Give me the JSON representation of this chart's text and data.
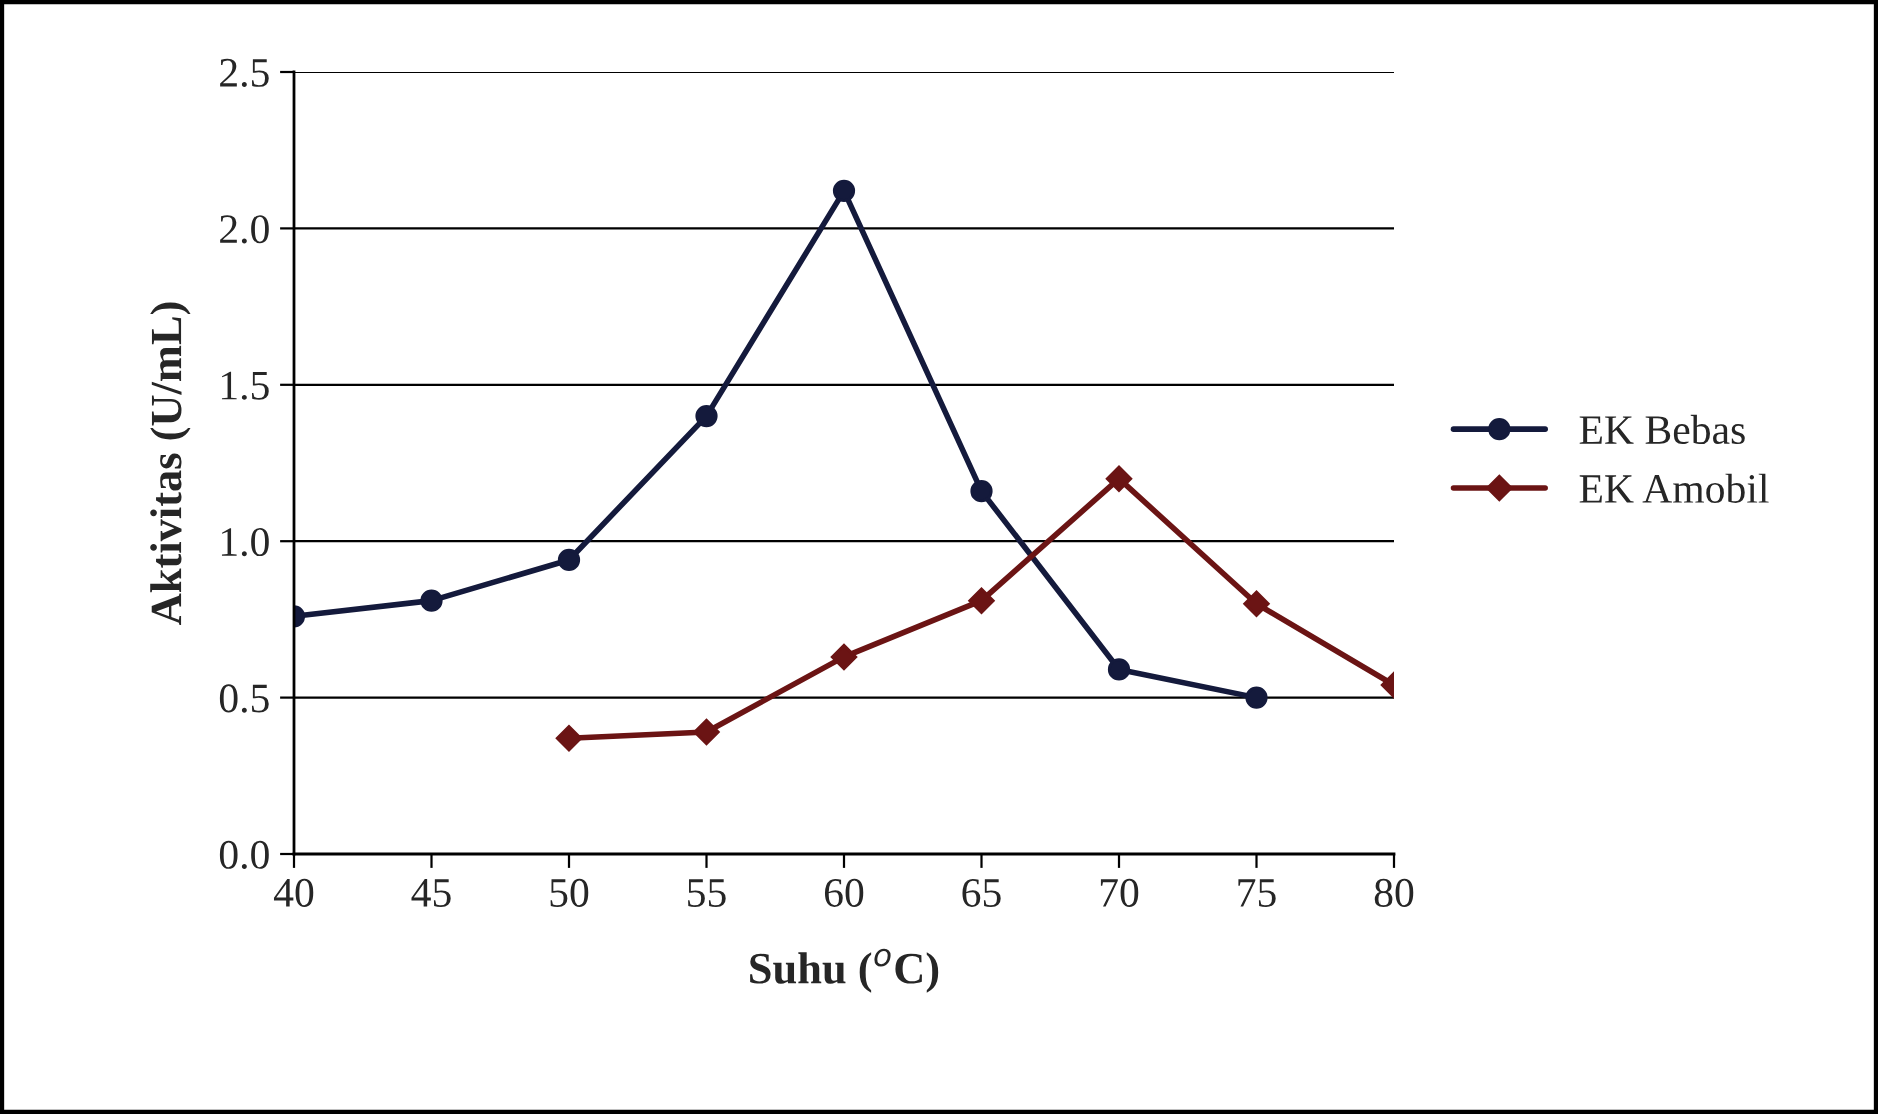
{
  "chart_data": {
    "type": "line",
    "xlabel": "Suhu ($^{o}$C)",
    "ylabel": "Aktivitas (U/mL)",
    "xlim": [
      40,
      80
    ],
    "xticks": [
      40,
      45,
      50,
      55,
      60,
      65,
      70,
      75,
      80
    ],
    "ylim": [
      0,
      2.5
    ],
    "yticks": [
      {
        "value": 0,
        "label": "0.0"
      },
      {
        "value": 0.5,
        "label": "0.5"
      },
      {
        "value": 1,
        "label": "1.0"
      },
      {
        "value": 1.5,
        "label": "1.5"
      },
      {
        "value": 2,
        "label": "2.0"
      },
      {
        "value": 2.5,
        "label": "2.5"
      }
    ],
    "grid": "y",
    "legend": "right",
    "series": [
      {
        "name": "EK Bebas",
        "color": "#141a3c",
        "marker": "circle",
        "x": [
          40,
          45,
          50,
          55,
          60,
          65,
          70,
          75
        ],
        "values": [
          0.76,
          0.81,
          0.94,
          1.4,
          2.12,
          1.16,
          0.59,
          0.5
        ]
      },
      {
        "name": "EK Amobil",
        "color": "#6b1414",
        "marker": "diamond",
        "x": [
          50,
          55,
          60,
          65,
          70,
          75,
          80
        ],
        "values": [
          0.37,
          0.39,
          0.63,
          0.81,
          1.2,
          0.8,
          0.54
        ]
      }
    ]
  }
}
